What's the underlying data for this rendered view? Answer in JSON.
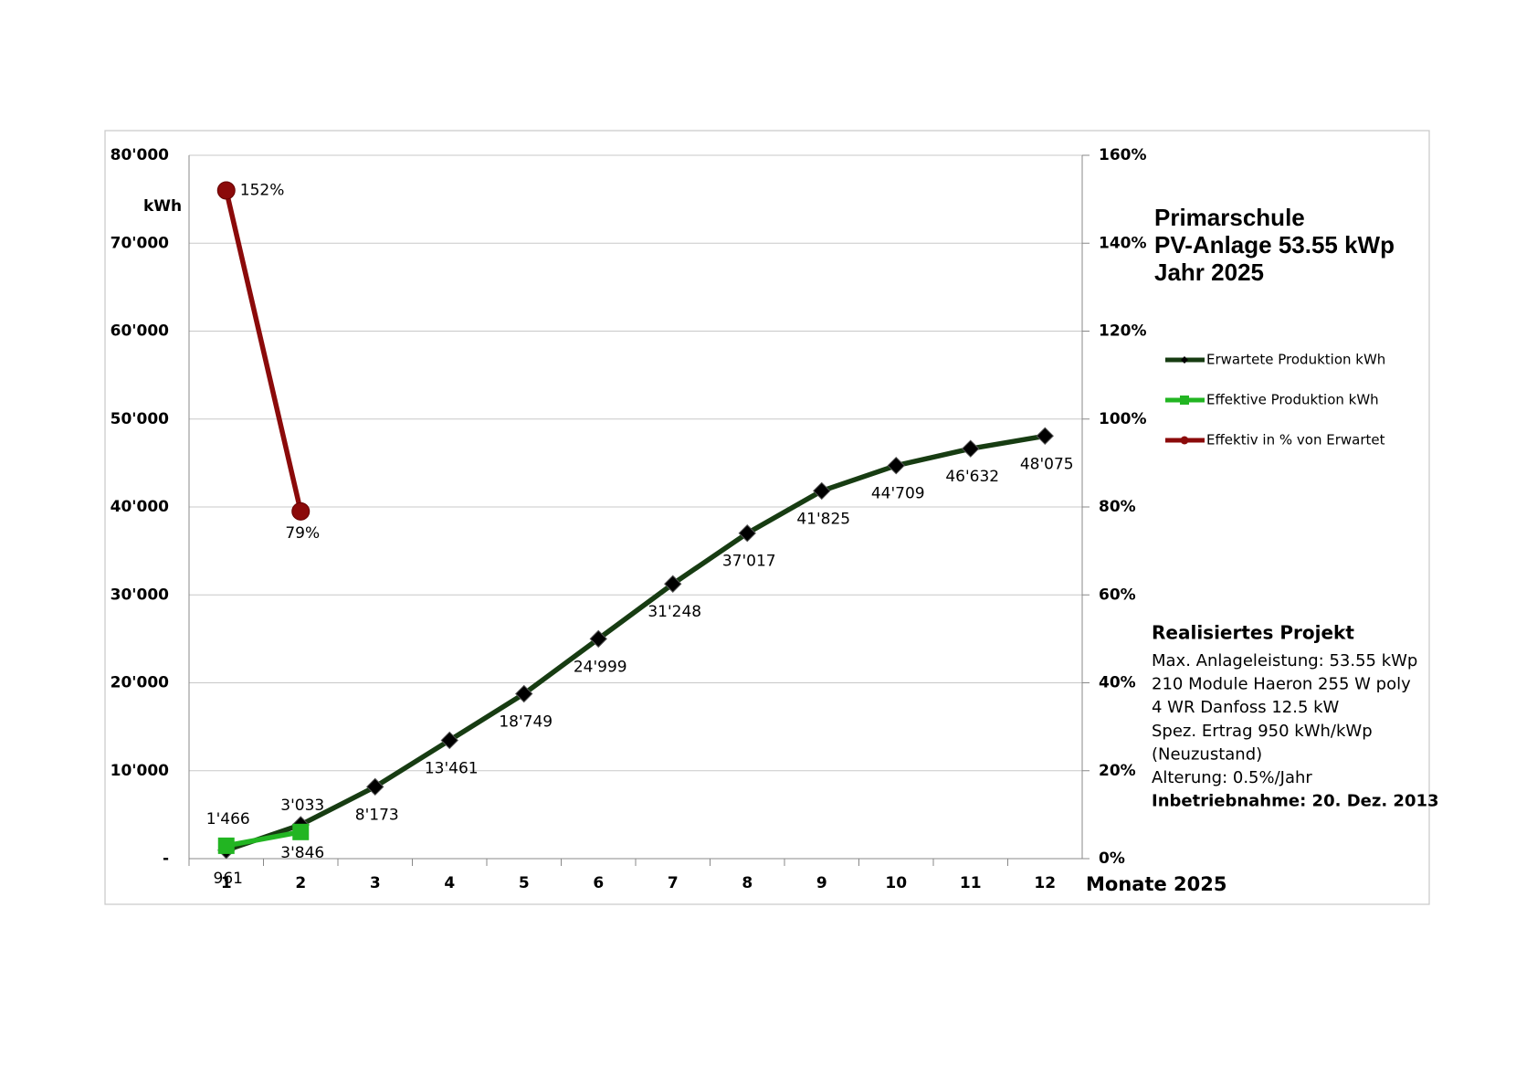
{
  "chart_data": {
    "type": "line",
    "title_lines": [
      "Primarschule",
      "PV-Anlage 53.55 kWp",
      "Jahr 2025"
    ],
    "y_label": "kWh",
    "x_label": "Monate 2025",
    "categories": [
      1,
      2,
      3,
      4,
      5,
      6,
      7,
      8,
      9,
      10,
      11,
      12
    ],
    "ylim": [
      0,
      80000
    ],
    "yticks": [
      {
        "value": 0,
        "label": "-"
      },
      {
        "value": 10000,
        "label": "10'000"
      },
      {
        "value": 20000,
        "label": "20'000"
      },
      {
        "value": 30000,
        "label": "30'000"
      },
      {
        "value": 40000,
        "label": "40'000"
      },
      {
        "value": 50000,
        "label": "50'000"
      },
      {
        "value": 60000,
        "label": "60'000"
      },
      {
        "value": 70000,
        "label": "70'000"
      },
      {
        "value": 80000,
        "label": "80'000"
      }
    ],
    "y2lim": [
      0,
      160
    ],
    "y2ticks": [
      {
        "value": 0,
        "label": "0%"
      },
      {
        "value": 20,
        "label": "20%"
      },
      {
        "value": 40,
        "label": "40%"
      },
      {
        "value": 60,
        "label": "60%"
      },
      {
        "value": 80,
        "label": "80%"
      },
      {
        "value": 100,
        "label": "100%"
      },
      {
        "value": 120,
        "label": "120%"
      },
      {
        "value": 140,
        "label": "140%"
      },
      {
        "value": 160,
        "label": "160%"
      }
    ],
    "grid": true,
    "series": [
      {
        "name": "Erwartete Produktion kWh",
        "color": "#173c12",
        "marker": "diamond",
        "values": [
          961,
          3846,
          8173,
          13461,
          18749,
          24999,
          31248,
          37017,
          41825,
          44709,
          46632,
          48075
        ],
        "value_labels": [
          "961",
          "3'846",
          "8'173",
          "13'461",
          "18'749",
          "24'999",
          "31'248",
          "37'017",
          "41'825",
          "44'709",
          "46'632",
          "48'075"
        ]
      },
      {
        "name": "Effektive Produktion kWh",
        "color": "#22b522",
        "marker": "square",
        "values": [
          1466,
          3033,
          null,
          null,
          null,
          null,
          null,
          null,
          null,
          null,
          null,
          null
        ],
        "value_labels": [
          "1'466",
          "3'033",
          null,
          null,
          null,
          null,
          null,
          null,
          null,
          null,
          null,
          null
        ]
      },
      {
        "name": "Effektiv in % von Erwartet",
        "color": "#8b0a0a",
        "marker": "circle",
        "axis": "y2",
        "values": [
          152,
          79,
          null,
          null,
          null,
          null,
          null,
          null,
          null,
          null,
          null,
          null
        ],
        "value_labels": [
          "152%",
          "79%",
          null,
          null,
          null,
          null,
          null,
          null,
          null,
          null,
          null,
          null
        ]
      }
    ],
    "info": {
      "heading": "Realisiertes Projekt",
      "lines": [
        "Max. Anlageleistung: 53.55 kWp",
        "210 Module Haeron 255 W poly",
        "4 WR Danfoss 12.5 kW",
        "Spez. Ertrag 950 kWh/kWp",
        "(Neuzustand)",
        "Alterung: 0.5%/Jahr"
      ],
      "footer": "Inbetriebnahme: 20. Dez. 2013"
    }
  }
}
